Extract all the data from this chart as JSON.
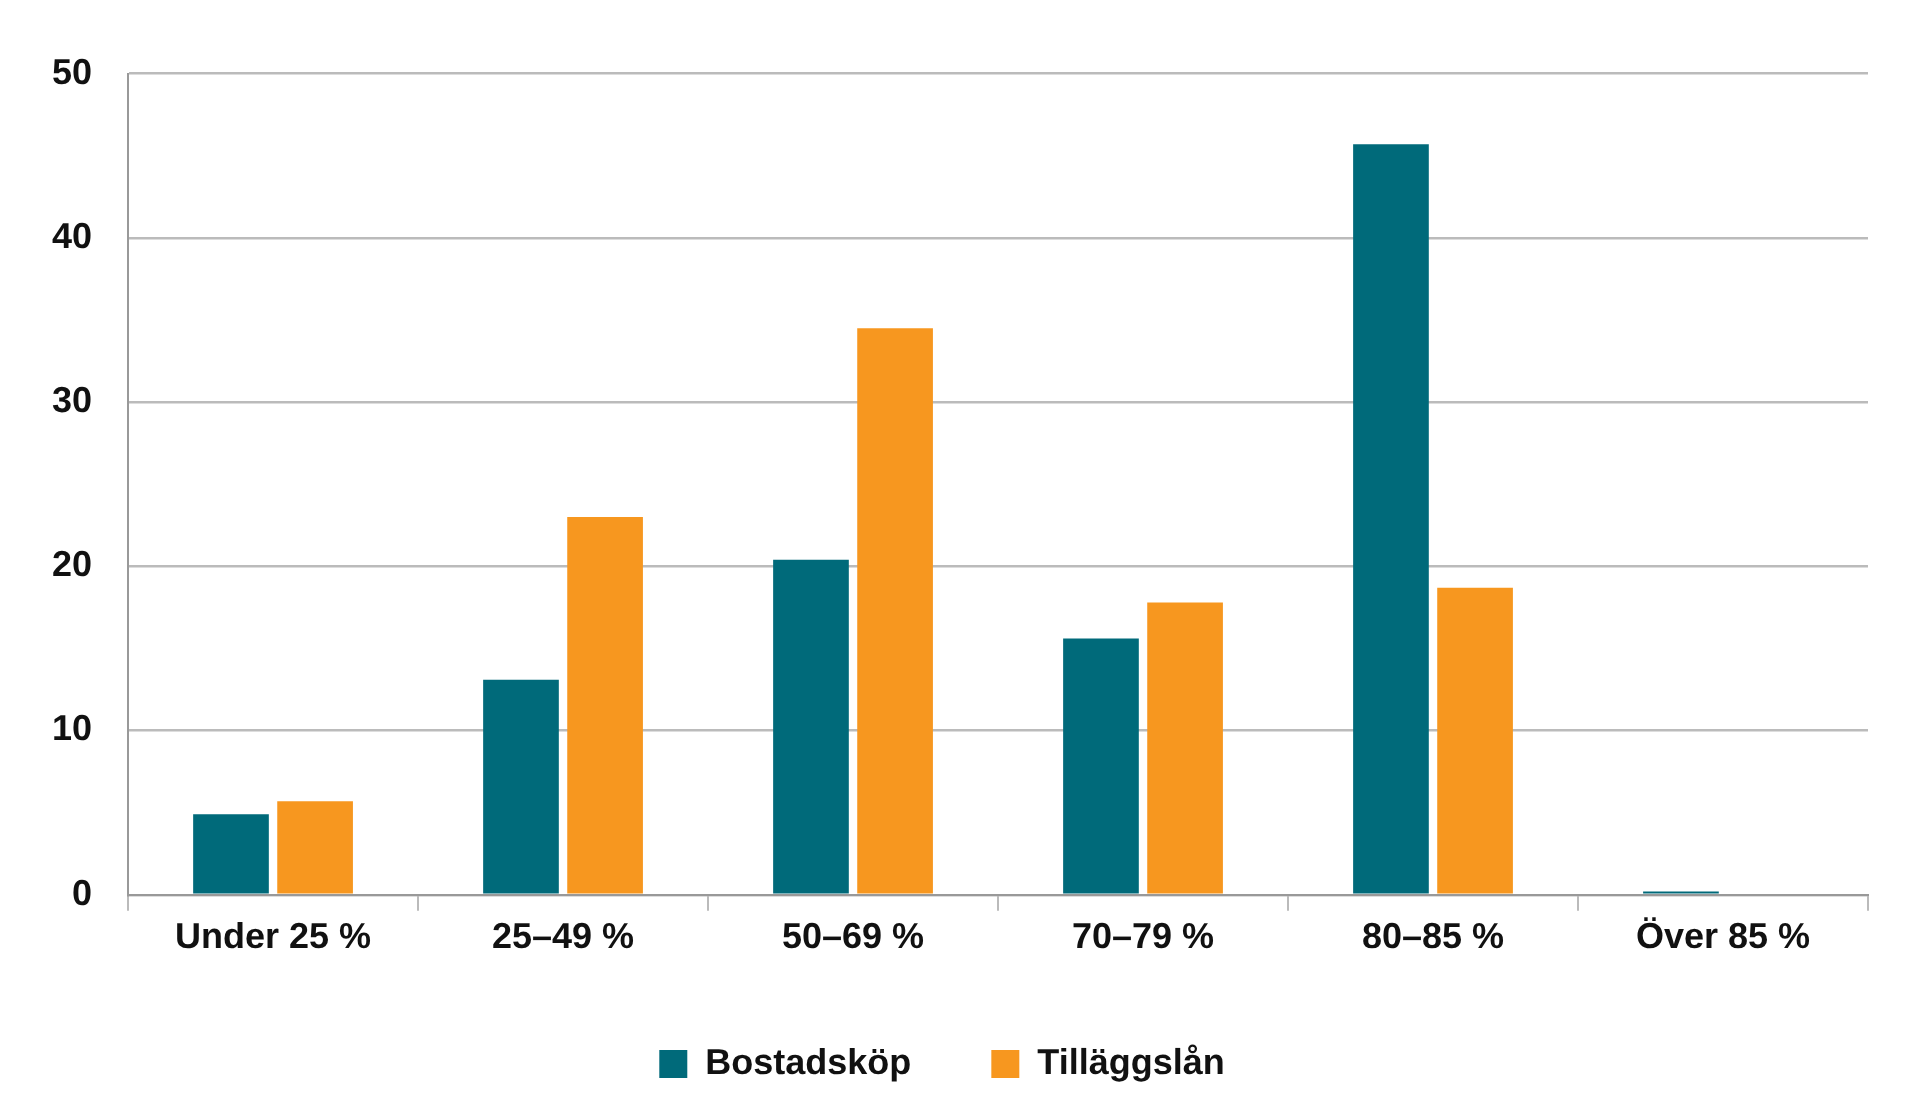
{
  "chart_data": {
    "type": "bar",
    "categories": [
      "Under 25 %",
      "25–49 %",
      "50–69 %",
      "70–79 %",
      "80–85 %",
      "Över 85 %"
    ],
    "series": [
      {
        "name": "Bostadsköp",
        "color": "#006a7a",
        "values": [
          4.9,
          13.1,
          20.4,
          15.6,
          45.7,
          0.2
        ]
      },
      {
        "name": "Tilläggslån",
        "color": "#f7971f",
        "values": [
          5.7,
          23.0,
          34.5,
          17.8,
          18.7,
          null
        ]
      }
    ],
    "ylim": [
      0,
      50
    ],
    "yticks": [
      0,
      10,
      20,
      30,
      40,
      50
    ],
    "grid": "y",
    "legend": "bottom"
  }
}
